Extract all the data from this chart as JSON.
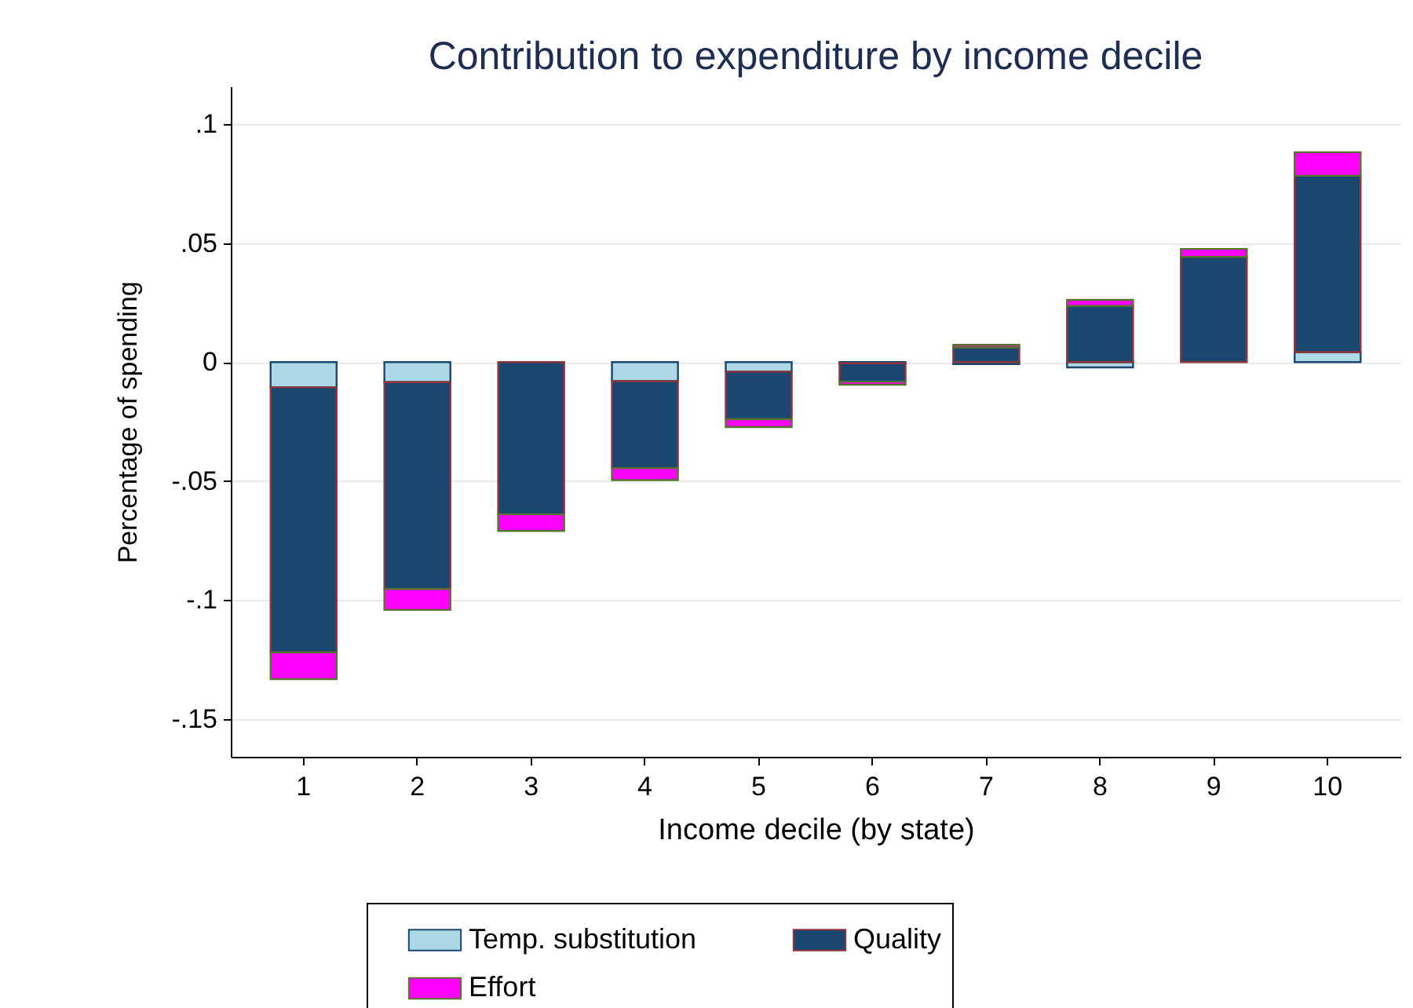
{
  "chart_data": {
    "type": "bar",
    "title": "Contribution to expenditure by income decile",
    "xlabel": "Income decile (by state)",
    "ylabel": "Percentage of spending",
    "categories": [
      "1",
      "2",
      "3",
      "4",
      "5",
      "6",
      "7",
      "8",
      "9",
      "10"
    ],
    "series": [
      {
        "name": "Temp. substitution",
        "color": "#add8e6",
        "values": [
          -0.0106,
          -0.0084,
          null,
          -0.008,
          -0.004,
          -0.0005,
          -0.0008,
          -0.0022,
          null,
          0.0042
        ]
      },
      {
        "name": "Quality",
        "color": "#1a476f",
        "values": [
          -0.1115,
          -0.087,
          -0.064,
          -0.0366,
          -0.02,
          -0.0077,
          0.0062,
          0.0236,
          0.0443,
          0.0742
        ]
      },
      {
        "name": "Effort",
        "color": "#ff00ff",
        "values": [
          -0.0112,
          -0.0088,
          -0.007,
          -0.005,
          -0.0033,
          -0.0013,
          0.0011,
          0.0026,
          0.0033,
          0.0099
        ]
      }
    ],
    "stacked": true,
    "ylim": [
      -0.166,
      0.116
    ],
    "yticks": [
      {
        "value": -0.15,
        "label": "-.15"
      },
      {
        "value": -0.1,
        "label": "-.1"
      },
      {
        "value": -0.05,
        "label": "-.05"
      },
      {
        "value": 0,
        "label": "0"
      },
      {
        "value": 0.05,
        "label": ".05"
      },
      {
        "value": 0.1,
        "label": ".1"
      }
    ],
    "grid": "y",
    "legend": "bottom"
  }
}
